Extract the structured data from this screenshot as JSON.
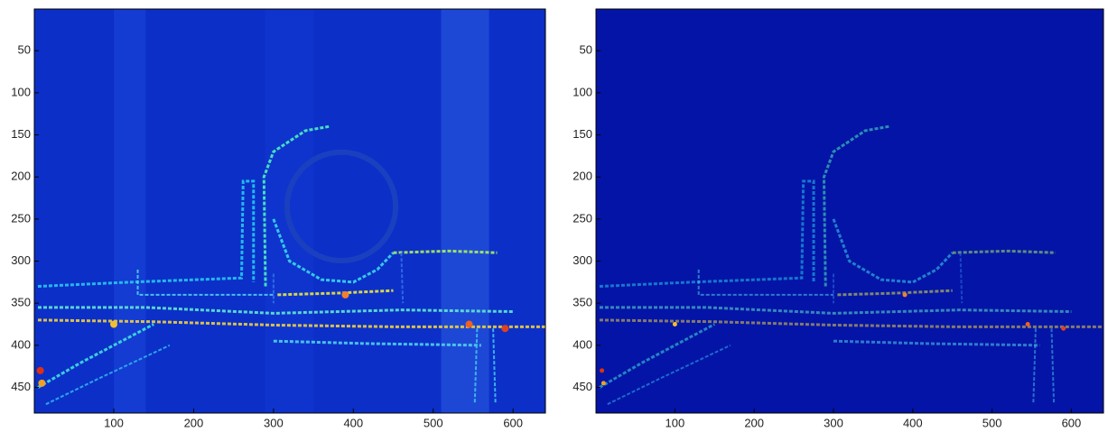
{
  "chart_data": [
    {
      "type": "image",
      "color": "#0c2fc8",
      "xlim": [
        0.5,
        640.5
      ],
      "ylim": [
        0.5,
        480.5
      ],
      "xticks": [
        100,
        200,
        300,
        400,
        500,
        600
      ],
      "yticks": [
        50,
        100,
        150,
        200,
        250,
        300,
        350,
        400,
        450
      ]
    },
    {
      "type": "image",
      "color": "#0414a6",
      "xlim": [
        0.5,
        640.5
      ],
      "ylim": [
        0.5,
        480.5
      ],
      "xticks": [
        100,
        200,
        300,
        400,
        500,
        600
      ],
      "yticks": [
        50,
        100,
        150,
        200,
        250,
        300,
        350,
        400,
        450
      ]
    }
  ]
}
